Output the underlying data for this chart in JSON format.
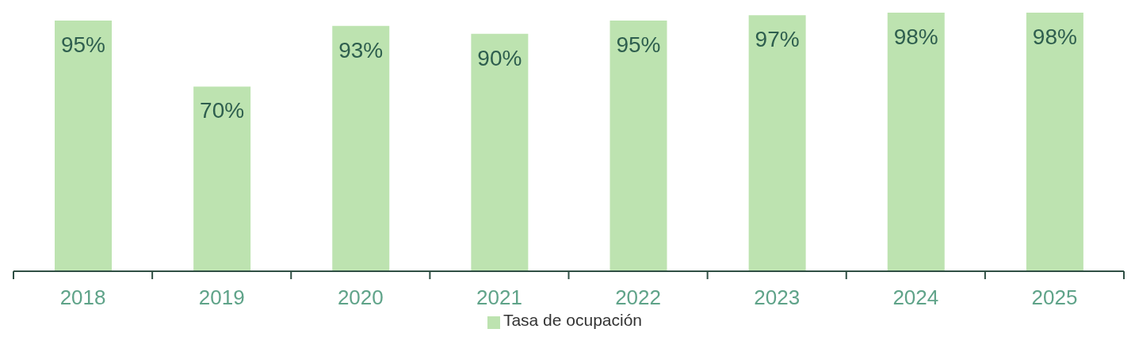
{
  "chart_data": {
    "type": "bar",
    "categories": [
      "2018",
      "2019",
      "2020",
      "2021",
      "2022",
      "2023",
      "2024",
      "2025"
    ],
    "series": [
      {
        "name": "Tasa de ocupación",
        "color": "#bde3b0",
        "values": [
          95,
          70,
          93,
          90,
          95,
          97,
          98,
          98
        ],
        "value_labels": [
          "95%",
          "70%",
          "93%",
          "90%",
          "95%",
          "97%",
          "98%",
          "98%"
        ]
      }
    ],
    "legend": "bottom",
    "grid": false
  }
}
